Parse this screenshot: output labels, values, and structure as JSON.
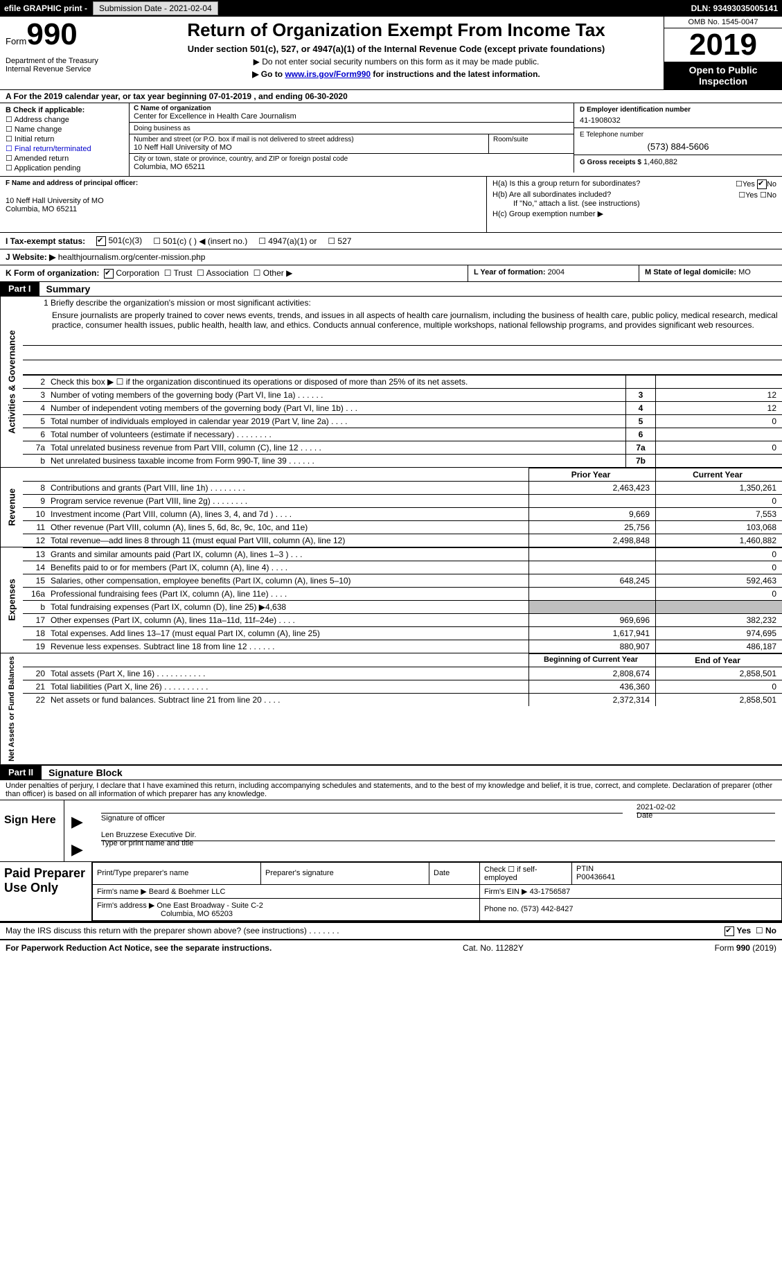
{
  "top_bar": {
    "efile_label": "efile GRAPHIC print -",
    "submission_label": "Submission Date - 2021-02-04",
    "dln_label": "DLN: 93493035005141"
  },
  "header": {
    "form_word": "Form",
    "form_num": "990",
    "dept": "Department of the Treasury\nInternal Revenue Service",
    "title": "Return of Organization Exempt From Income Tax",
    "sub": "Under section 501(c), 527, or 4947(a)(1) of the Internal Revenue Code (except private foundations)",
    "note1_prefix": "▶ Do not enter social security numbers on this form as it may be made public.",
    "note2_prefix": "▶ Go to ",
    "note2_link": "www.irs.gov/Form990",
    "note2_suffix": " for instructions and the latest information.",
    "omb": "OMB No. 1545-0047",
    "year": "2019",
    "open_insp": "Open to Public Inspection"
  },
  "row_a": "A For the 2019 calendar year, or tax year beginning 07-01-2019    , and ending 06-30-2020",
  "box_b": {
    "label": "B Check if applicable:",
    "items": [
      "Address change",
      "Name change",
      "Initial return",
      "Final return/terminated",
      "Amended return",
      "Application pending"
    ]
  },
  "box_c": {
    "lbl_name": "C Name of organization",
    "org_name": "Center for Excellence in Health Care Journalism",
    "lbl_dba": "Doing business as",
    "dba": "",
    "lbl_street": "Number and street (or P.O. box if mail is not delivered to street address)",
    "street": "10 Neff Hall University of MO",
    "lbl_room": "Room/suite",
    "room": "",
    "lbl_city": "City or town, state or province, country, and ZIP or foreign postal code",
    "city": "Columbia, MO  65211"
  },
  "box_d": {
    "lbl": "D Employer identification number",
    "val": "41-1908032"
  },
  "box_e": {
    "lbl": "E Telephone number",
    "val": "(573) 884-5606"
  },
  "box_g": {
    "lbl": "G Gross receipts $",
    "val": "1,460,882"
  },
  "box_f": {
    "lbl": "F Name and address of principal officer:",
    "line1": "",
    "line2": "10 Neff Hall University of MO",
    "line3": "Columbia, MO  65211"
  },
  "box_h": {
    "a_q": "H(a)  Is this a group return for subordinates?",
    "a_yes": "Yes",
    "a_no": "No",
    "b_q": "H(b)  Are all subordinates included?",
    "b_yes": "Yes",
    "b_no": "No",
    "b_note": "If \"No,\" attach a list. (see instructions)",
    "c_q": "H(c)  Group exemption number ▶"
  },
  "row_i": {
    "label": "I    Tax-exempt status:",
    "opt1": "501(c)(3)",
    "opt2": "501(c) (   ) ◀ (insert no.)",
    "opt3": "4947(a)(1) or",
    "opt4": "527"
  },
  "row_j": {
    "label": "J   Website: ▶",
    "val": " healthjournalism.org/center-mission.php"
  },
  "row_k": {
    "k_label": "K Form of organization:",
    "k_opts": [
      "Corporation",
      "Trust",
      "Association",
      "Other ▶"
    ],
    "l_label": "L Year of formation: ",
    "l_val": "2004",
    "m_label": "M State of legal domicile: ",
    "m_val": "MO"
  },
  "part1": {
    "hdr": "Part I",
    "title": "Summary"
  },
  "mission": {
    "q": "1  Briefly describe the organization's mission or most significant activities:",
    "text": "Ensure journalists are properly trained to cover news events, trends, and issues in all aspects of health care journalism, including the business of health care, public policy, medical research, medical practice, consumer health issues, public health, health law, and ethics. Conducts annual conference, multiple workshops, national fellowship programs, and provides significant web resources."
  },
  "gov_lines": [
    {
      "num": "2",
      "desc": "Check this box ▶ ☐  if the organization discontinued its operations or disposed of more than 25% of its net assets.",
      "box": "",
      "val": ""
    },
    {
      "num": "3",
      "desc": "Number of voting members of the governing body (Part VI, line 1a)   .    .    .    .    .    .",
      "box": "3",
      "val": "12"
    },
    {
      "num": "4",
      "desc": "Number of independent voting members of the governing body (Part VI, line 1b)   .    .    .",
      "box": "4",
      "val": "12"
    },
    {
      "num": "5",
      "desc": "Total number of individuals employed in calendar year 2019 (Part V, line 2a)   .    .    .    .",
      "box": "5",
      "val": "0"
    },
    {
      "num": "6",
      "desc": "Total number of volunteers (estimate if necessary)   .    .    .    .    .    .    .    .",
      "box": "6",
      "val": ""
    },
    {
      "num": "7a",
      "desc": "Total unrelated business revenue from Part VIII, column (C), line 12   .    .    .    .    .",
      "box": "7a",
      "val": "0"
    },
    {
      "num": " b",
      "desc": "Net unrelated business taxable income from Form 990-T, line 39   .    .    .    .    .    .",
      "box": "7b",
      "val": ""
    }
  ],
  "rev_hdr": {
    "prior": "Prior Year",
    "curr": "Current Year"
  },
  "rev_lines": [
    {
      "num": "8",
      "desc": "Contributions and grants (Part VIII, line 1h)   .    .    .    .    .    .    .    .",
      "prior": "2,463,423",
      "curr": "1,350,261"
    },
    {
      "num": "9",
      "desc": "Program service revenue (Part VIII, line 2g)   .    .    .    .    .    .    .    .",
      "prior": "",
      "curr": "0"
    },
    {
      "num": "10",
      "desc": "Investment income (Part VIII, column (A), lines 3, 4, and 7d )   .    .    .    .",
      "prior": "9,669",
      "curr": "7,553"
    },
    {
      "num": "11",
      "desc": "Other revenue (Part VIII, column (A), lines 5, 6d, 8c, 9c, 10c, and 11e)",
      "prior": "25,756",
      "curr": "103,068"
    },
    {
      "num": "12",
      "desc": "Total revenue—add lines 8 through 11 (must equal Part VIII, column (A), line 12)",
      "prior": "2,498,848",
      "curr": "1,460,882"
    }
  ],
  "exp_lines": [
    {
      "num": "13",
      "desc": "Grants and similar amounts paid (Part IX, column (A), lines 1–3 )   .    .    .",
      "prior": "",
      "curr": "0"
    },
    {
      "num": "14",
      "desc": "Benefits paid to or for members (Part IX, column (A), line 4)   .    .    .    .",
      "prior": "",
      "curr": "0"
    },
    {
      "num": "15",
      "desc": "Salaries, other compensation, employee benefits (Part IX, column (A), lines 5–10)",
      "prior": "648,245",
      "curr": "592,463"
    },
    {
      "num": "16a",
      "desc": "Professional fundraising fees (Part IX, column (A), line 11e)   .    .    .    .",
      "prior": "",
      "curr": "0"
    },
    {
      "num": "  b",
      "desc": "Total fundraising expenses (Part IX, column (D), line 25) ▶4,638",
      "prior": "SHADE",
      "curr": "SHADE"
    },
    {
      "num": "17",
      "desc": "Other expenses (Part IX, column (A), lines 11a–11d, 11f–24e)   .    .    .    .",
      "prior": "969,696",
      "curr": "382,232"
    },
    {
      "num": "18",
      "desc": "Total expenses. Add lines 13–17 (must equal Part IX, column (A), line 25)",
      "prior": "1,617,941",
      "curr": "974,695"
    },
    {
      "num": "19",
      "desc": "Revenue less expenses. Subtract line 18 from line 12   .    .    .    .    .    .",
      "prior": "880,907",
      "curr": "486,187"
    }
  ],
  "na_hdr": {
    "prior": "Beginning of Current Year",
    "curr": "End of Year"
  },
  "na_lines": [
    {
      "num": "20",
      "desc": "Total assets (Part X, line 16)   .    .    .    .    .    .    .    .    .    .    .",
      "prior": "2,808,674",
      "curr": "2,858,501"
    },
    {
      "num": "21",
      "desc": "Total liabilities (Part X, line 26)   .    .    .    .    .    .    .    .    .    .",
      "prior": "436,360",
      "curr": "0"
    },
    {
      "num": "22",
      "desc": "Net assets or fund balances. Subtract line 21 from line 20   .    .    .    .",
      "prior": "2,372,314",
      "curr": "2,858,501"
    }
  ],
  "part2": {
    "hdr": "Part II",
    "title": "Signature Block"
  },
  "sig": {
    "perjury": "Under penalties of perjury, I declare that I have examined this return, including accompanying schedules and statements, and to the best of my knowledge and belief, it is true, correct, and complete. Declaration of preparer (other than officer) is based on all information of which preparer has any knowledge.",
    "sign_here": "Sign Here",
    "sig_of_officer": "Signature of officer",
    "date_val": "2021-02-02",
    "date_lbl": "Date",
    "name_title_val": "Len Bruzzese  Executive Dir.",
    "name_title_lbl": "Type or print name and title"
  },
  "paid": {
    "label": "Paid Preparer Use Only",
    "h_prep": "Print/Type preparer's name",
    "h_sig": "Preparer's signature",
    "h_date": "Date",
    "h_check": "Check ☐ if self-employed",
    "h_ptin": "PTIN",
    "ptin": "P00436641",
    "firm_name_lbl": "Firm's name    ▶",
    "firm_name": "Beard & Boehmer LLC",
    "firm_ein_lbl": "Firm's EIN ▶",
    "firm_ein": "43-1756587",
    "firm_addr_lbl": "Firm's address ▶",
    "firm_addr1": "One East Broadway - Suite C-2",
    "firm_addr2": "Columbia, MO  65203",
    "phone_lbl": "Phone no.",
    "phone": "(573) 442-8427"
  },
  "discuss": {
    "q": "May the IRS discuss this return with the preparer shown above? (see instructions)   .    .    .    .    .    .    .",
    "yes": "Yes",
    "no": "No"
  },
  "footer": {
    "left": "For Paperwork Reduction Act Notice, see the separate instructions.",
    "mid": "Cat. No. 11282Y",
    "right": "Form 990 (2019)"
  },
  "colors": {
    "black": "#000000",
    "shade": "#bfbfbf",
    "link": "#0000cc"
  }
}
